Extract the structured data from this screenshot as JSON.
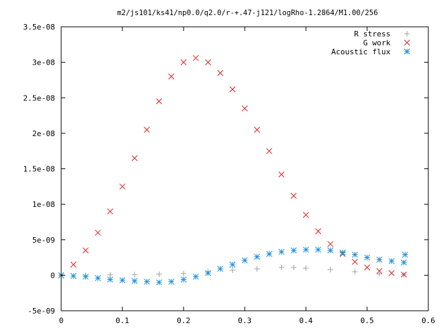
{
  "chart_data": {
    "type": "scatter",
    "title": "m2/js101/ks41/np0.0/q2.0/r-+.47-j121/logRho-1.2864/M1.00/256",
    "xlabel": "",
    "ylabel": "",
    "xlim": [
      0,
      0.6
    ],
    "ylim": [
      -5e-09,
      3.5e-08
    ],
    "x_ticks": [
      "0",
      "0.1",
      "0.2",
      "0.3",
      "0.4",
      "0.5",
      "0.6"
    ],
    "x_tick_values": [
      0,
      0.1,
      0.2,
      0.3,
      0.4,
      0.5,
      0.6
    ],
    "y_ticks": [
      "-5e-09",
      "0",
      "5e-09",
      "1e-08",
      "1.5e-08",
      "2e-08",
      "2.5e-08",
      "3e-08",
      "3.5e-08"
    ],
    "y_tick_values": [
      -5e-09,
      0,
      5e-09,
      1e-08,
      1.5e-08,
      2e-08,
      2.5e-08,
      3e-08,
      3.5e-08
    ],
    "grid": false,
    "legend_position": "top-right",
    "series": [
      {
        "name": "R stress",
        "marker": "plus",
        "color": "#a0a0a0",
        "x": [
          0.0,
          0.04,
          0.08,
          0.12,
          0.16,
          0.2,
          0.24,
          0.28,
          0.32,
          0.36,
          0.38,
          0.4,
          0.44,
          0.48,
          0.52,
          0.56
        ],
        "y": [
          0.0,
          0.0,
          5e-11,
          1e-10,
          1.5e-10,
          2.5e-10,
          5e-10,
          7e-10,
          9e-10,
          1.1e-09,
          1.1e-09,
          1e-09,
          8e-10,
          5e-10,
          2e-10,
          1e-10
        ]
      },
      {
        "name": "G work",
        "marker": "cross",
        "color": "#e02020",
        "x": [
          0.0,
          0.02,
          0.04,
          0.06,
          0.08,
          0.1,
          0.12,
          0.14,
          0.16,
          0.18,
          0.2,
          0.22,
          0.24,
          0.26,
          0.28,
          0.3,
          0.32,
          0.34,
          0.36,
          0.38,
          0.4,
          0.42,
          0.44,
          0.46,
          0.48,
          0.5,
          0.52,
          0.54,
          0.56
        ],
        "y": [
          0.0,
          1.5e-09,
          3.5e-09,
          6e-09,
          9e-09,
          1.25e-08,
          1.65e-08,
          2.05e-08,
          2.45e-08,
          2.8e-08,
          3e-08,
          3.06e-08,
          3e-08,
          2.85e-08,
          2.62e-08,
          2.35e-08,
          2.05e-08,
          1.75e-08,
          1.42e-08,
          1.12e-08,
          8.5e-09,
          6.2e-09,
          4.4e-09,
          3e-09,
          1.9e-09,
          1.1e-09,
          6e-10,
          3e-10,
          1e-10
        ]
      },
      {
        "name": "Acoustic flux",
        "marker": "star",
        "color": "#1a8fe0",
        "x": [
          0.0,
          0.02,
          0.04,
          0.06,
          0.08,
          0.1,
          0.12,
          0.14,
          0.16,
          0.18,
          0.2,
          0.22,
          0.24,
          0.26,
          0.28,
          0.3,
          0.32,
          0.34,
          0.36,
          0.38,
          0.4,
          0.42,
          0.44,
          0.46,
          0.48,
          0.5,
          0.52,
          0.54,
          0.56,
          0.562
        ],
        "y": [
          0.0,
          -1e-10,
          -2e-10,
          -4e-10,
          -6e-10,
          -7e-10,
          -8e-10,
          -9e-10,
          -1e-09,
          -9e-10,
          -6e-10,
          -2e-10,
          3e-10,
          9e-10,
          1.5e-09,
          2.1e-09,
          2.6e-09,
          3e-09,
          3.3e-09,
          3.5e-09,
          3.6e-09,
          3.6e-09,
          3.5e-09,
          3.2e-09,
          2.9e-09,
          2.5e-09,
          2.2e-09,
          2e-09,
          1.8e-09,
          2.9e-09
        ]
      }
    ]
  }
}
